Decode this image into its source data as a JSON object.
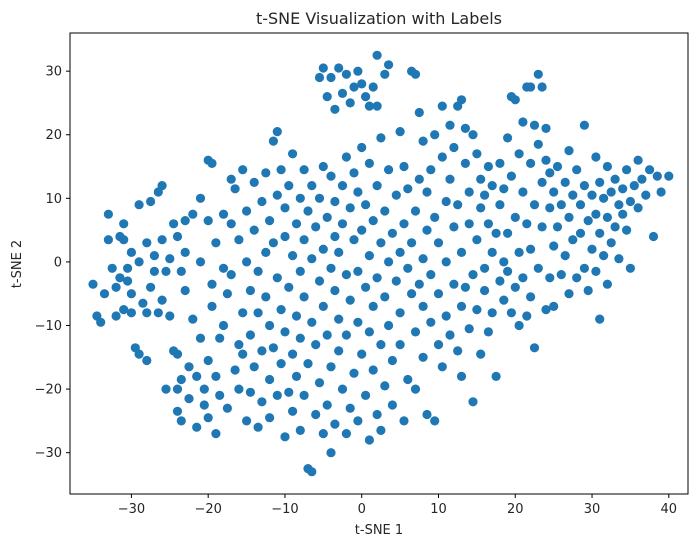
{
  "chart_data": {
    "type": "scatter",
    "title": "t-SNE Visualization with Labels",
    "xlabel": "t-SNE 1",
    "ylabel": "t-SNE 2",
    "xlim": [
      -38,
      42.5
    ],
    "ylim": [
      -36.5,
      36
    ],
    "xticks": [
      -30,
      -20,
      -10,
      0,
      10,
      20,
      30,
      40
    ],
    "yticks": [
      -30,
      -20,
      -10,
      0,
      10,
      20,
      30
    ],
    "grid": false,
    "legend": "none",
    "marker_color": "#1f77b4",
    "points": [
      [
        -35,
        -3.5
      ],
      [
        -34.5,
        -8.5
      ],
      [
        -34,
        -9.5
      ],
      [
        -33.5,
        -5
      ],
      [
        -33,
        7.5
      ],
      [
        -33,
        3.5
      ],
      [
        -32.5,
        -1
      ],
      [
        -32,
        -4
      ],
      [
        -32,
        -8.5
      ],
      [
        -31.5,
        4
      ],
      [
        -31.5,
        -2.5
      ],
      [
        -31,
        3.5
      ],
      [
        -31,
        6
      ],
      [
        -31,
        -7.5
      ],
      [
        -30.5,
        -1
      ],
      [
        -30.5,
        -3
      ],
      [
        -30,
        1.5
      ],
      [
        -30,
        -5
      ],
      [
        -30,
        -8
      ],
      [
        -29.5,
        -13.5
      ],
      [
        -29,
        -14.5
      ],
      [
        -29,
        0
      ],
      [
        -29,
        9
      ],
      [
        -28.5,
        -6.5
      ],
      [
        -28,
        -8
      ],
      [
        -28,
        3
      ],
      [
        -28,
        -15.5
      ],
      [
        -27.5,
        9.5
      ],
      [
        -27.5,
        -4
      ],
      [
        -27,
        -1.5
      ],
      [
        -27,
        1
      ],
      [
        -26.5,
        11
      ],
      [
        -26.5,
        -8
      ],
      [
        -26,
        12
      ],
      [
        -26,
        3.5
      ],
      [
        -26,
        -6
      ],
      [
        -25.5,
        -20
      ],
      [
        -25.5,
        -1.5
      ],
      [
        -25,
        -8.5
      ],
      [
        -25,
        0.5
      ],
      [
        -24.5,
        -14
      ],
      [
        -24.5,
        6
      ],
      [
        -24,
        -14.5
      ],
      [
        -24,
        -20
      ],
      [
        -24,
        -23.5
      ],
      [
        -24,
        4
      ],
      [
        -23.5,
        -18.5
      ],
      [
        -23.5,
        -25
      ],
      [
        -23.5,
        -1.5
      ],
      [
        -23,
        -4.5
      ],
      [
        -23,
        6.5
      ],
      [
        -23,
        1.5
      ],
      [
        -22.5,
        -21.5
      ],
      [
        -22.5,
        -16.5
      ],
      [
        -22,
        -9
      ],
      [
        -22,
        7.5
      ],
      [
        -21.5,
        -18
      ],
      [
        -21.5,
        -26
      ],
      [
        -21,
        0
      ],
      [
        -21,
        10
      ],
      [
        -21,
        -12
      ],
      [
        -20.5,
        -20
      ],
      [
        -20.5,
        -22.5
      ],
      [
        -20,
        16
      ],
      [
        -20,
        6.5
      ],
      [
        -20,
        -15.5
      ],
      [
        -20,
        -24.5
      ],
      [
        -19.5,
        15.5
      ],
      [
        -19.5,
        -3.5
      ],
      [
        -19.5,
        -7
      ],
      [
        -19,
        -27
      ],
      [
        -19,
        -18
      ],
      [
        -19,
        3
      ],
      [
        -18.5,
        -12
      ],
      [
        -18.5,
        -21
      ],
      [
        -18,
        7.5
      ],
      [
        -18,
        -10
      ],
      [
        -18,
        -1
      ],
      [
        -17.5,
        -5
      ],
      [
        -17.5,
        -23
      ],
      [
        -17,
        13
      ],
      [
        -17,
        -2
      ],
      [
        -17,
        6
      ],
      [
        -16.5,
        -17
      ],
      [
        -16.5,
        11.5
      ],
      [
        -16,
        -13
      ],
      [
        -16,
        -20
      ],
      [
        -16,
        3.5
      ],
      [
        -15.5,
        -8
      ],
      [
        -15.5,
        -14.5
      ],
      [
        -15.5,
        14.5
      ],
      [
        -15,
        -25
      ],
      [
        -15,
        0
      ],
      [
        -15,
        8
      ],
      [
        -14.5,
        -4.5
      ],
      [
        -14.5,
        -20.5
      ],
      [
        -14.5,
        -11.5
      ],
      [
        -14,
        12.5
      ],
      [
        -14,
        -16.5
      ],
      [
        -14,
        5
      ],
      [
        -13.5,
        -8
      ],
      [
        -13.5,
        -1.5
      ],
      [
        -13.5,
        -26
      ],
      [
        -13,
        9.5
      ],
      [
        -13,
        -14
      ],
      [
        -13,
        -22
      ],
      [
        -12.5,
        1.5
      ],
      [
        -12.5,
        -5.5
      ],
      [
        -12.5,
        14
      ],
      [
        -12,
        -18.5
      ],
      [
        -12,
        -10
      ],
      [
        -12,
        6.5
      ],
      [
        -12,
        -24.5
      ],
      [
        -11.5,
        19
      ],
      [
        -11.5,
        3
      ],
      [
        -11.5,
        -13.5
      ],
      [
        -11,
        20.5
      ],
      [
        -11,
        -2.5
      ],
      [
        -11,
        -21
      ],
      [
        -11,
        10.5
      ],
      [
        -10.5,
        -7.5
      ],
      [
        -10.5,
        -16
      ],
      [
        -10.5,
        14.5
      ],
      [
        -10,
        -27.5
      ],
      [
        -10,
        4
      ],
      [
        -10,
        -11
      ],
      [
        -10,
        8.5
      ],
      [
        -9.5,
        -20.5
      ],
      [
        -9.5,
        -4
      ],
      [
        -9.5,
        12
      ],
      [
        -9,
        1
      ],
      [
        -9,
        -14.5
      ],
      [
        -9,
        -23.5
      ],
      [
        -9,
        17
      ],
      [
        -8.5,
        -8.5
      ],
      [
        -8.5,
        6
      ],
      [
        -8.5,
        -18
      ],
      [
        -8,
        -1.5
      ],
      [
        -8,
        10
      ],
      [
        -8,
        -26.5
      ],
      [
        -8,
        -12
      ],
      [
        -7.5,
        14.5
      ],
      [
        -7.5,
        3.5
      ],
      [
        -7.5,
        -5.5
      ],
      [
        -7.5,
        -21
      ],
      [
        -7,
        -32.5
      ],
      [
        -7,
        8
      ],
      [
        -7,
        -16
      ],
      [
        -6.5,
        -33
      ],
      [
        -6.5,
        0.5
      ],
      [
        -6.5,
        -9.5
      ],
      [
        -6.5,
        12
      ],
      [
        -6,
        -24
      ],
      [
        -6,
        5.5
      ],
      [
        -6,
        -13
      ],
      [
        -5.5,
        29
      ],
      [
        -5.5,
        -3
      ],
      [
        -5.5,
        10
      ],
      [
        -5.5,
        -19
      ],
      [
        -5,
        30.5
      ],
      [
        -5,
        2
      ],
      [
        -5,
        -7
      ],
      [
        -5,
        15
      ],
      [
        -5,
        -27
      ],
      [
        -4.5,
        26
      ],
      [
        -4.5,
        -11.5
      ],
      [
        -4.5,
        7
      ],
      [
        -4.5,
        -22.5
      ],
      [
        -4,
        29
      ],
      [
        -4,
        -1
      ],
      [
        -4,
        13.5
      ],
      [
        -4,
        -16.5
      ],
      [
        -4,
        -30
      ],
      [
        -3.5,
        24
      ],
      [
        -3.5,
        4
      ],
      [
        -3.5,
        -4.5
      ],
      [
        -3.5,
        9.5
      ],
      [
        -3.5,
        -25.5
      ],
      [
        -3,
        30.5
      ],
      [
        -3,
        -9
      ],
      [
        -3,
        1.5
      ],
      [
        -3,
        -14
      ],
      [
        -2.5,
        26.5
      ],
      [
        -2.5,
        12
      ],
      [
        -2.5,
        -20
      ],
      [
        -2.5,
        6
      ],
      [
        -2,
        29.5
      ],
      [
        -2,
        -2
      ],
      [
        -2,
        16.5
      ],
      [
        -2,
        -11.5
      ],
      [
        -2,
        -27
      ],
      [
        -1.5,
        25
      ],
      [
        -1.5,
        8.5
      ],
      [
        -1.5,
        -6
      ],
      [
        -1.5,
        -23
      ],
      [
        -1,
        27.5
      ],
      [
        -1,
        3.5
      ],
      [
        -1,
        -17.5
      ],
      [
        -1,
        14
      ],
      [
        -0.5,
        30
      ],
      [
        -0.5,
        -1.5
      ],
      [
        -0.5,
        -9.5
      ],
      [
        -0.5,
        11
      ],
      [
        -0.5,
        -25
      ],
      [
        0,
        28
      ],
      [
        0,
        5
      ],
      [
        0,
        -14.5
      ],
      [
        0,
        18
      ],
      [
        0.5,
        26
      ],
      [
        0.5,
        -4
      ],
      [
        0.5,
        9
      ],
      [
        0.5,
        -21
      ],
      [
        1,
        24.5
      ],
      [
        1,
        1
      ],
      [
        1,
        -11
      ],
      [
        1,
        15.5
      ],
      [
        1,
        -28
      ],
      [
        1.5,
        27.5
      ],
      [
        1.5,
        6.5
      ],
      [
        1.5,
        -7
      ],
      [
        1.5,
        -17
      ],
      [
        2,
        32.5
      ],
      [
        2,
        24.5
      ],
      [
        2,
        -2.5
      ],
      [
        2,
        12
      ],
      [
        2,
        -24
      ],
      [
        2.5,
        3
      ],
      [
        2.5,
        -13
      ],
      [
        2.5,
        19.5
      ],
      [
        2.5,
        -26.5
      ],
      [
        3,
        29.5
      ],
      [
        3,
        8
      ],
      [
        3,
        -5.5
      ],
      [
        3,
        -19.5
      ],
      [
        3.5,
        31
      ],
      [
        3.5,
        0
      ],
      [
        3.5,
        14.5
      ],
      [
        3.5,
        -10
      ],
      [
        4,
        4.5
      ],
      [
        4,
        -15.5
      ],
      [
        4,
        -22.5
      ],
      [
        4.5,
        10.5
      ],
      [
        4.5,
        -3
      ],
      [
        5,
        20.5
      ],
      [
        5,
        1.5
      ],
      [
        5,
        -8
      ],
      [
        5,
        -13
      ],
      [
        5.5,
        6
      ],
      [
        5.5,
        -25
      ],
      [
        5.5,
        15
      ],
      [
        6,
        -1
      ],
      [
        6,
        -18.5
      ],
      [
        6,
        11.5
      ],
      [
        6.5,
        30
      ],
      [
        6.5,
        -5
      ],
      [
        6.5,
        3
      ],
      [
        7,
        29.5
      ],
      [
        7,
        -11
      ],
      [
        7,
        8
      ],
      [
        7,
        -20
      ],
      [
        7.5,
        23.5
      ],
      [
        7.5,
        -3.5
      ],
      [
        7.5,
        13
      ],
      [
        8,
        19
      ],
      [
        8,
        -7
      ],
      [
        8,
        0.5
      ],
      [
        8,
        -15
      ],
      [
        8.5,
        5
      ],
      [
        8.5,
        -24
      ],
      [
        8.5,
        11
      ],
      [
        9,
        -9.5
      ],
      [
        9,
        14.5
      ],
      [
        9,
        -2
      ],
      [
        9.5,
        -25
      ],
      [
        9.5,
        20
      ],
      [
        9.5,
        7
      ],
      [
        10,
        -13
      ],
      [
        10,
        -5
      ],
      [
        10,
        3
      ],
      [
        10.5,
        24.5
      ],
      [
        10.5,
        16.5
      ],
      [
        10.5,
        -16.5
      ],
      [
        11,
        9.5
      ],
      [
        11,
        -8.5
      ],
      [
        11,
        0
      ],
      [
        11.5,
        21.5
      ],
      [
        11.5,
        13
      ],
      [
        11.5,
        -11.5
      ],
      [
        12,
        5.5
      ],
      [
        12,
        -3.5
      ],
      [
        12,
        18
      ],
      [
        12.5,
        24.5
      ],
      [
        12.5,
        9
      ],
      [
        12.5,
        -14
      ],
      [
        13,
        25.5
      ],
      [
        13,
        1.5
      ],
      [
        13,
        -18
      ],
      [
        13,
        -7
      ],
      [
        13.5,
        21
      ],
      [
        13.5,
        15.5
      ],
      [
        13.5,
        -4
      ],
      [
        14,
        6
      ],
      [
        14,
        -10.5
      ],
      [
        14,
        11
      ],
      [
        14.5,
        20
      ],
      [
        14.5,
        -2
      ],
      [
        14.5,
        -22
      ],
      [
        15,
        17
      ],
      [
        15,
        3.5
      ],
      [
        15,
        -7.5
      ],
      [
        15.5,
        8.5
      ],
      [
        15.5,
        -14.5
      ],
      [
        15.5,
        13
      ],
      [
        16,
        -1
      ],
      [
        16,
        -4.5
      ],
      [
        16,
        10.5
      ],
      [
        16.5,
        6
      ],
      [
        16.5,
        -11
      ],
      [
        16.5,
        15
      ],
      [
        17,
        1.5
      ],
      [
        17,
        -8
      ],
      [
        17,
        12
      ],
      [
        17.5,
        -18
      ],
      [
        17.5,
        4.5
      ],
      [
        18,
        -3
      ],
      [
        18,
        9
      ],
      [
        18,
        15.5
      ],
      [
        18.5,
        0
      ],
      [
        18.5,
        -6
      ],
      [
        18.5,
        11.5
      ],
      [
        19,
        19.5
      ],
      [
        19,
        4.5
      ],
      [
        19,
        -1.5
      ],
      [
        19.5,
        26
      ],
      [
        19.5,
        -8
      ],
      [
        19.5,
        13.5
      ],
      [
        20,
        25.5
      ],
      [
        20,
        7
      ],
      [
        20,
        -4
      ],
      [
        20.5,
        17
      ],
      [
        20.5,
        1.5
      ],
      [
        20.5,
        -10
      ],
      [
        21,
        22
      ],
      [
        21,
        11
      ],
      [
        21,
        -2.5
      ],
      [
        21.5,
        27.5
      ],
      [
        21.5,
        6
      ],
      [
        21.5,
        -8.5
      ],
      [
        22,
        27.5
      ],
      [
        22,
        15.5
      ],
      [
        22,
        2
      ],
      [
        22,
        -5.5
      ],
      [
        22.5,
        21.5
      ],
      [
        22.5,
        9
      ],
      [
        22.5,
        -13.5
      ],
      [
        23,
        29.5
      ],
      [
        23,
        18.5
      ],
      [
        23,
        -1
      ],
      [
        23.5,
        27.5
      ],
      [
        23.5,
        12.5
      ],
      [
        23.5,
        5.5
      ],
      [
        24,
        21
      ],
      [
        24,
        -7.5
      ],
      [
        24,
        16
      ],
      [
        24.5,
        8.5
      ],
      [
        24.5,
        -2.5
      ],
      [
        24.5,
        14
      ],
      [
        25,
        11
      ],
      [
        25,
        -7
      ],
      [
        25,
        2.5
      ],
      [
        25.5,
        5.5
      ],
      [
        25.5,
        15
      ],
      [
        26,
        9
      ],
      [
        26,
        -2
      ],
      [
        26.5,
        12.5
      ],
      [
        26.5,
        1
      ],
      [
        27,
        17.5
      ],
      [
        27,
        7
      ],
      [
        27,
        -5
      ],
      [
        27.5,
        10.5
      ],
      [
        27.5,
        3.5
      ],
      [
        28,
        14.5
      ],
      [
        28,
        -2.5
      ],
      [
        28.5,
        9
      ],
      [
        28.5,
        4.5
      ],
      [
        29,
        21.5
      ],
      [
        29,
        12
      ],
      [
        29,
        -1
      ],
      [
        29.5,
        6.5
      ],
      [
        29.5,
        -4.5
      ],
      [
        30,
        10.5
      ],
      [
        30,
        2
      ],
      [
        30.5,
        16.5
      ],
      [
        30.5,
        7.5
      ],
      [
        30.5,
        -1.5
      ],
      [
        31,
        12.5
      ],
      [
        31,
        4.5
      ],
      [
        31,
        -9
      ],
      [
        31.5,
        10
      ],
      [
        31.5,
        1
      ],
      [
        32,
        15
      ],
      [
        32,
        7
      ],
      [
        32,
        -3.5
      ],
      [
        32.5,
        11
      ],
      [
        32.5,
        3
      ],
      [
        33,
        13
      ],
      [
        33,
        5.5
      ],
      [
        33.5,
        9
      ],
      [
        33.5,
        0.5
      ],
      [
        34,
        11.5
      ],
      [
        34,
        7.5
      ],
      [
        34.5,
        14.5
      ],
      [
        34.5,
        5
      ],
      [
        35,
        9.5
      ],
      [
        35,
        -1
      ],
      [
        35.5,
        12
      ],
      [
        36,
        16
      ],
      [
        36,
        8.5
      ],
      [
        36.5,
        13
      ],
      [
        37,
        10.5
      ],
      [
        37.5,
        14.5
      ],
      [
        38,
        4
      ],
      [
        38.5,
        13.5
      ],
      [
        39,
        11
      ],
      [
        40,
        13.5
      ]
    ]
  }
}
